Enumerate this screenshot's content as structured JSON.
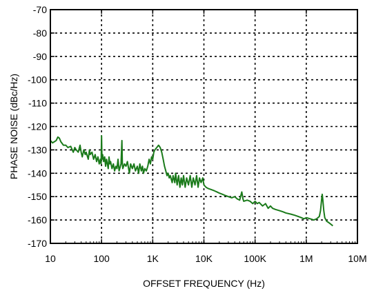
{
  "chart_data": {
    "type": "line",
    "title": "",
    "xlabel": "OFFSET FREQUENCY (Hz)",
    "ylabel": "PHASE NOISE (dBc/Hz)",
    "x_scale": "log",
    "xlim": [
      10,
      10000000
    ],
    "ylim": [
      -170,
      -70
    ],
    "grid": true,
    "legend": "none",
    "x_ticks": [
      {
        "value": 10,
        "label": "10"
      },
      {
        "value": 100,
        "label": "100"
      },
      {
        "value": 1000,
        "label": "1K"
      },
      {
        "value": 10000,
        "label": "10K"
      },
      {
        "value": 100000,
        "label": "100K"
      },
      {
        "value": 1000000,
        "label": "1M"
      },
      {
        "value": 10000000,
        "label": "10M"
      }
    ],
    "y_ticks": [
      {
        "value": -70,
        "label": "-70"
      },
      {
        "value": -80,
        "label": "-80"
      },
      {
        "value": -90,
        "label": "-90"
      },
      {
        "value": -100,
        "label": "-100"
      },
      {
        "value": -110,
        "label": "-110"
      },
      {
        "value": -120,
        "label": "-120"
      },
      {
        "value": -130,
        "label": "-130"
      },
      {
        "value": -140,
        "label": "-140"
      },
      {
        "value": -150,
        "label": "-150"
      },
      {
        "value": -160,
        "label": "-160"
      },
      {
        "value": -170,
        "label": "-170"
      }
    ],
    "series": [
      {
        "color": "#1a7a1a",
        "points": [
          [
            10,
            -126
          ],
          [
            11,
            -127
          ],
          [
            12,
            -126.5
          ],
          [
            13,
            -126
          ],
          [
            14,
            -124.5
          ],
          [
            15,
            -125
          ],
          [
            16,
            -126.5
          ],
          [
            18,
            -128
          ],
          [
            20,
            -128
          ],
          [
            22,
            -129
          ],
          [
            25,
            -128.5
          ],
          [
            28,
            -131
          ],
          [
            30,
            -129
          ],
          [
            32,
            -130
          ],
          [
            35,
            -131
          ],
          [
            38,
            -128
          ],
          [
            40,
            -131
          ],
          [
            42,
            -133
          ],
          [
            45,
            -130
          ],
          [
            48,
            -132
          ],
          [
            50,
            -131
          ],
          [
            55,
            -134
          ],
          [
            58,
            -130
          ],
          [
            60,
            -132
          ],
          [
            65,
            -131
          ],
          [
            70,
            -134
          ],
          [
            75,
            -132
          ],
          [
            80,
            -135
          ],
          [
            85,
            -133
          ],
          [
            90,
            -136
          ],
          [
            95,
            -134
          ],
          [
            98,
            -136
          ],
          [
            100,
            -124
          ],
          [
            102,
            -134
          ],
          [
            105,
            -132
          ],
          [
            110,
            -135
          ],
          [
            115,
            -133
          ],
          [
            120,
            -137
          ],
          [
            125,
            -134
          ],
          [
            130,
            -136
          ],
          [
            135,
            -138
          ],
          [
            140,
            -133
          ],
          [
            145,
            -136
          ],
          [
            150,
            -135
          ],
          [
            160,
            -138
          ],
          [
            170,
            -136
          ],
          [
            180,
            -139
          ],
          [
            190,
            -137
          ],
          [
            200,
            -138
          ],
          [
            210,
            -134
          ],
          [
            220,
            -139
          ],
          [
            240,
            -136
          ],
          [
            250,
            -126
          ],
          [
            255,
            -136
          ],
          [
            260,
            -138
          ],
          [
            280,
            -136
          ],
          [
            300,
            -137
          ],
          [
            320,
            -135
          ],
          [
            350,
            -140
          ],
          [
            370,
            -136
          ],
          [
            400,
            -138
          ],
          [
            430,
            -136
          ],
          [
            460,
            -139
          ],
          [
            500,
            -137
          ],
          [
            530,
            -140
          ],
          [
            560,
            -136
          ],
          [
            600,
            -139
          ],
          [
            630,
            -137
          ],
          [
            660,
            -140
          ],
          [
            700,
            -138
          ],
          [
            750,
            -139
          ],
          [
            800,
            -137
          ],
          [
            850,
            -134
          ],
          [
            900,
            -136
          ],
          [
            950,
            -133
          ],
          [
            1000,
            -134
          ],
          [
            1050,
            -131
          ],
          [
            1100,
            -130
          ],
          [
            1200,
            -129
          ],
          [
            1300,
            -128
          ],
          [
            1400,
            -129
          ],
          [
            1500,
            -131
          ],
          [
            1600,
            -134
          ],
          [
            1700,
            -137
          ],
          [
            1800,
            -139
          ],
          [
            1900,
            -141
          ],
          [
            2000,
            -140
          ],
          [
            2100,
            -142
          ],
          [
            2200,
            -141
          ],
          [
            2400,
            -144
          ],
          [
            2500,
            -141
          ],
          [
            2700,
            -144
          ],
          [
            2800,
            -140
          ],
          [
            3000,
            -145
          ],
          [
            3200,
            -141
          ],
          [
            3400,
            -146
          ],
          [
            3600,
            -142
          ],
          [
            3800,
            -145
          ],
          [
            4000,
            -141
          ],
          [
            4300,
            -146
          ],
          [
            4600,
            -142
          ],
          [
            5000,
            -145
          ],
          [
            5400,
            -141
          ],
          [
            5800,
            -146
          ],
          [
            6200,
            -142
          ],
          [
            6700,
            -145
          ],
          [
            7200,
            -141
          ],
          [
            7700,
            -146
          ],
          [
            8200,
            -142
          ],
          [
            8800,
            -144
          ],
          [
            9500,
            -142
          ],
          [
            10000,
            -145
          ],
          [
            11000,
            -146
          ],
          [
            12000,
            -146.5
          ],
          [
            14000,
            -147
          ],
          [
            16000,
            -147.5
          ],
          [
            18000,
            -148
          ],
          [
            20000,
            -148.5
          ],
          [
            23000,
            -149
          ],
          [
            26000,
            -149.5
          ],
          [
            30000,
            -150
          ],
          [
            35000,
            -150.5
          ],
          [
            40000,
            -150
          ],
          [
            45000,
            -151
          ],
          [
            50000,
            -151.5
          ],
          [
            55000,
            -148
          ],
          [
            58000,
            -151
          ],
          [
            60000,
            -152
          ],
          [
            70000,
            -151.5
          ],
          [
            80000,
            -152
          ],
          [
            90000,
            -153
          ],
          [
            100000,
            -152
          ],
          [
            110000,
            -153
          ],
          [
            120000,
            -152.5
          ],
          [
            140000,
            -154
          ],
          [
            160000,
            -153
          ],
          [
            180000,
            -155
          ],
          [
            200000,
            -154
          ],
          [
            220000,
            -155
          ],
          [
            250000,
            -155.5
          ],
          [
            300000,
            -156
          ],
          [
            350000,
            -156.5
          ],
          [
            400000,
            -157
          ],
          [
            500000,
            -157.5
          ],
          [
            600000,
            -158
          ],
          [
            700000,
            -158.5
          ],
          [
            800000,
            -159
          ],
          [
            900000,
            -159.5
          ],
          [
            1000000,
            -159
          ],
          [
            1200000,
            -159.5
          ],
          [
            1400000,
            -160
          ],
          [
            1600000,
            -159.5
          ],
          [
            1800000,
            -158.5
          ],
          [
            1900000,
            -156
          ],
          [
            2000000,
            -151
          ],
          [
            2050000,
            -149
          ],
          [
            2100000,
            -151
          ],
          [
            2200000,
            -156
          ],
          [
            2300000,
            -159
          ],
          [
            2500000,
            -160.5
          ],
          [
            2700000,
            -161
          ],
          [
            2900000,
            -161.5
          ],
          [
            3100000,
            -162
          ],
          [
            3300000,
            -162.5
          ]
        ]
      }
    ]
  }
}
